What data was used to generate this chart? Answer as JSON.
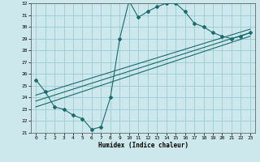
{
  "title": "",
  "xlabel": "Humidex (Indice chaleur)",
  "ylabel": "",
  "bg_color": "#cce8ec",
  "grid_color": "#99ccd4",
  "line_color": "#1a6b6b",
  "xlim": [
    -0.5,
    23.5
  ],
  "ylim": [
    21,
    32
  ],
  "xticks": [
    0,
    1,
    2,
    3,
    4,
    5,
    6,
    7,
    8,
    9,
    10,
    11,
    12,
    13,
    14,
    15,
    16,
    17,
    18,
    19,
    20,
    21,
    22,
    23
  ],
  "yticks": [
    21,
    22,
    23,
    24,
    25,
    26,
    27,
    28,
    29,
    30,
    31,
    32
  ],
  "series": [
    {
      "x": [
        0,
        1,
        2,
        3,
        4,
        5,
        6,
        7,
        8,
        9,
        10,
        11,
        12,
        13,
        14,
        15,
        16,
        17,
        18,
        19,
        20,
        21,
        22,
        23
      ],
      "y": [
        25.5,
        24.5,
        23.2,
        23.0,
        22.5,
        22.2,
        21.3,
        21.5,
        24.0,
        29.0,
        32.2,
        30.8,
        31.3,
        31.7,
        32.0,
        32.0,
        31.3,
        30.3,
        30.0,
        29.5,
        29.2,
        29.0,
        29.2,
        29.5
      ],
      "markers": true
    },
    {
      "x": [
        0,
        23
      ],
      "y": [
        23.2,
        29.2
      ],
      "markers": false
    },
    {
      "x": [
        0,
        23
      ],
      "y": [
        23.7,
        29.5
      ],
      "markers": false
    },
    {
      "x": [
        0,
        23
      ],
      "y": [
        24.2,
        29.8
      ],
      "markers": false
    }
  ]
}
